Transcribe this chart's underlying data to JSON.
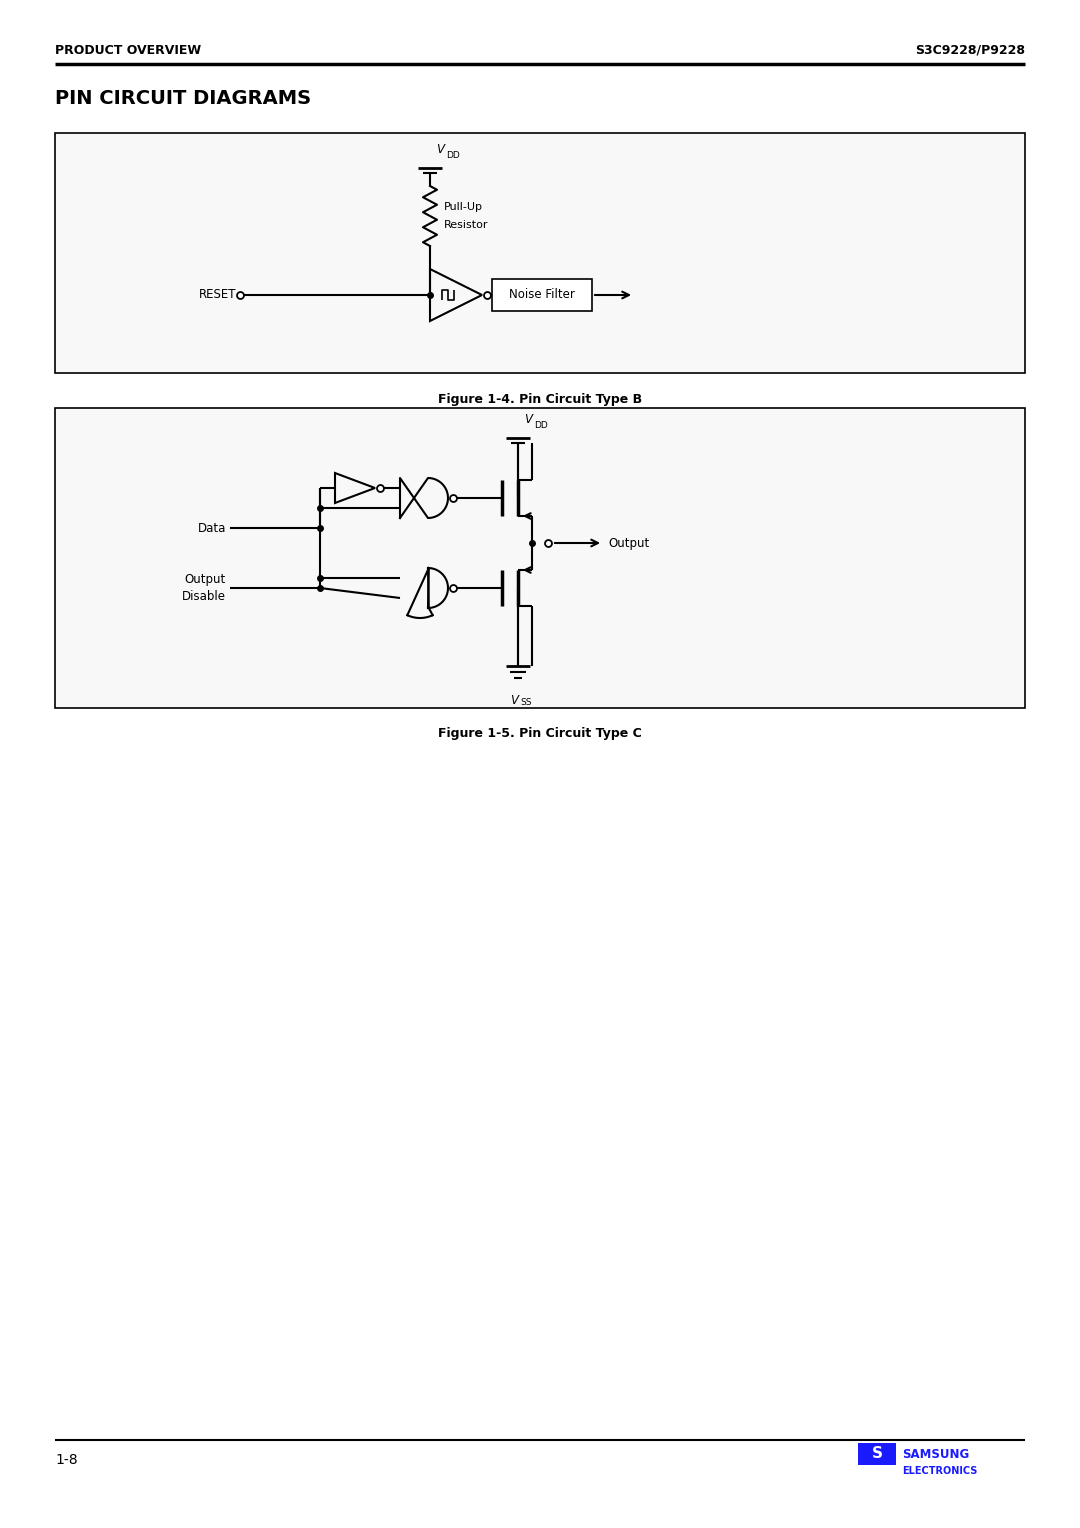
{
  "page_title_left": "PRODUCT OVERVIEW",
  "page_title_right": "S3C9228/P9228",
  "section_title": "PIN CIRCUIT DIAGRAMS",
  "fig4_caption": "Figure 1-4. Pin Circuit Type B",
  "fig5_caption": "Figure 1-5. Pin Circuit Type C",
  "page_number": "1-8",
  "samsung_text": "SAMSUNG",
  "electronics_text": "ELECTRONICS",
  "samsung_color": "#1a1aff",
  "electronics_color": "#1a1aff",
  "bg_color": "#ffffff",
  "line_color": "#000000",
  "box_fill": "#f8f8f8"
}
